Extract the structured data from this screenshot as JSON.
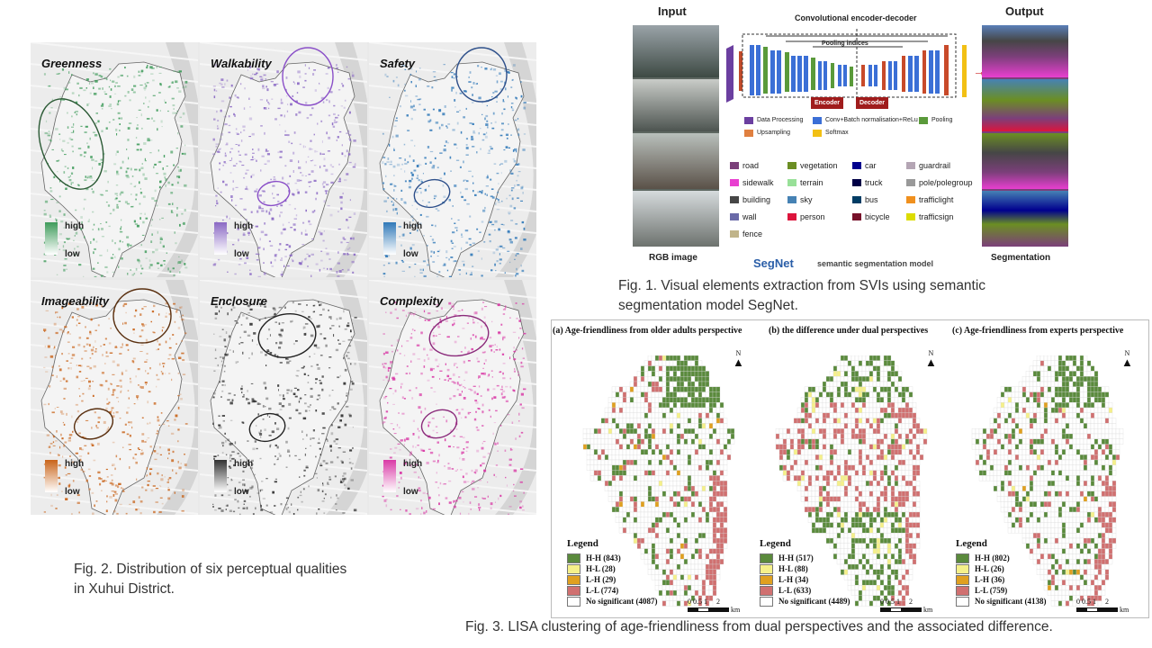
{
  "fig2": {
    "panels": [
      {
        "title": "Greenness",
        "high": "high",
        "low": "low",
        "color": "#3e9b5a"
      },
      {
        "title": "Walkability",
        "high": "high",
        "low": "low",
        "color": "#8a68c4"
      },
      {
        "title": "Safety",
        "high": "high",
        "low": "low",
        "color": "#2f78b8"
      },
      {
        "title": "Imageability",
        "high": "high",
        "low": "low",
        "color": "#c9641a"
      },
      {
        "title": "Enclosure",
        "high": "high",
        "low": "low",
        "color": "#333333"
      },
      {
        "title": "Complexity",
        "high": "high",
        "low": "low",
        "color": "#d93aa6"
      }
    ],
    "caption_line1": "Fig. 2. Distribution of six perceptual qualities",
    "caption_line2": "in Xuhui District."
  },
  "fig1": {
    "input_label": "Input",
    "output_label": "Output",
    "center_title": "Convolutional encoder-decoder",
    "pooling_label": "Pooling indices",
    "encoder_label": "Encoder",
    "decoder_label": "Decoder",
    "rgb_label": "RGB image",
    "model_name": "SegNet",
    "model_desc": "semantic segmentation model",
    "seg_label": "Segmentation",
    "layer_legend": [
      {
        "label": "Data Processing",
        "color": "#6b3fa0"
      },
      {
        "label": "Conv+Batch normalisation+ReLu",
        "color": "#3b6fd6"
      },
      {
        "label": "Pooling",
        "color": "#5a9a3a"
      },
      {
        "label": "Upsampling",
        "color": "#e08040"
      },
      {
        "label": "Softmax",
        "color": "#f2c014"
      }
    ],
    "classes": [
      {
        "label": "road",
        "color": "#7b3f7a"
      },
      {
        "label": "sidewalk",
        "color": "#e83fd0"
      },
      {
        "label": "building",
        "color": "#464646"
      },
      {
        "label": "wall",
        "color": "#6a6aa8"
      },
      {
        "label": "fence",
        "color": "#c0b48a"
      },
      {
        "label": "vegetation",
        "color": "#6b8e23"
      },
      {
        "label": "terrain",
        "color": "#98e098"
      },
      {
        "label": "sky",
        "color": "#4682b4"
      },
      {
        "label": "person",
        "color": "#dc143c"
      },
      {
        "label": "car",
        "color": "#00008e"
      },
      {
        "label": "truck",
        "color": "#000046"
      },
      {
        "label": "bus",
        "color": "#003c64"
      },
      {
        "label": "bicycle",
        "color": "#77112a"
      },
      {
        "label": "guardrail",
        "color": "#b4a5b4"
      },
      {
        "label": "pole/polegroup",
        "color": "#999999"
      },
      {
        "label": "trafficlight",
        "color": "#f0901e"
      },
      {
        "label": "trafficsign",
        "color": "#dcdc00"
      }
    ],
    "caption_line1": "Fig. 1. Visual elements extraction from SVIs using semantic",
    "caption_line2": "segmentation model SegNet."
  },
  "fig3": {
    "panels": [
      {
        "title": "(a) Age-friendliness from older adults perspective",
        "counts": [
          "H-H (843)",
          "H-L (28)",
          "L-H (29)",
          "L-L (774)",
          "No significant (4087)"
        ]
      },
      {
        "title": "(b) the difference under dual perspectives",
        "counts": [
          "H-H (517)",
          "H-L (88)",
          "L-H (34)",
          "L-L (633)",
          "No significant (4489)"
        ]
      },
      {
        "title": "(c) Age-friendliness from experts perspective",
        "counts": [
          "H-H (802)",
          "H-L (26)",
          "L-H (36)",
          "L-L (759)",
          "No significant (4138)"
        ]
      }
    ],
    "legend_title": "Legend",
    "legend_colors": [
      "#5a8a3c",
      "#f5f08a",
      "#e0a020",
      "#d07070",
      "#ffffff"
    ],
    "north": "N",
    "scale_ticks": "0 0.5 1     2",
    "scale_unit": "km",
    "caption": "Fig. 3. LISA clustering of age-friendliness from dual perspectives and the associated difference."
  }
}
